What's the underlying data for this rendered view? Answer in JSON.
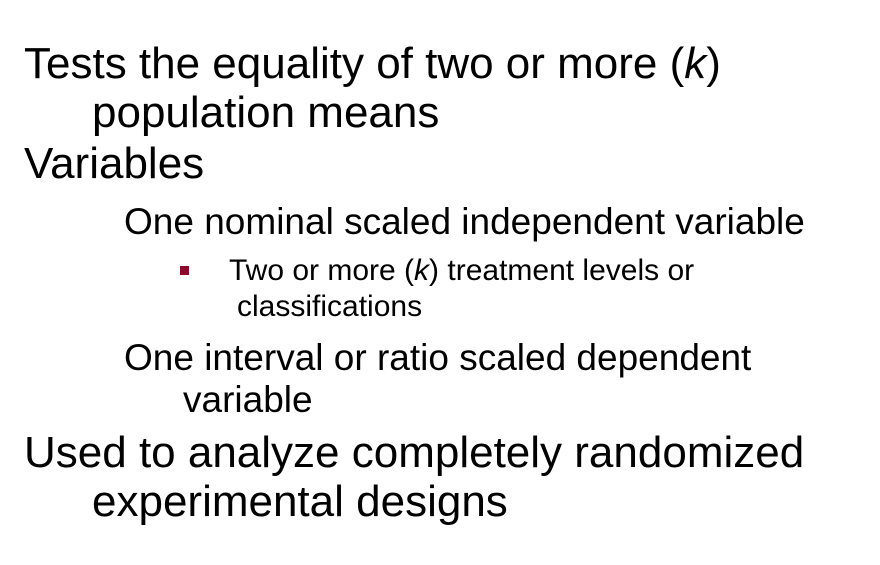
{
  "bullets": [
    {
      "level": 1,
      "lines": [
        {
          "before": "Tests the equality of two or more (",
          "italic": "k",
          "after": ")"
        },
        {
          "text": "population means"
        }
      ]
    },
    {
      "level": 1,
      "lines": [
        {
          "text": "Variables"
        }
      ]
    },
    {
      "level": 2,
      "lines": [
        {
          "text": "One nominal scaled independent variable"
        }
      ]
    },
    {
      "level": 3,
      "marker_color": "#8b0a2c",
      "lines": [
        {
          "before": "Two or more (",
          "italic": "k",
          "after": ") treatment levels or"
        },
        {
          "text": "classifications"
        }
      ]
    },
    {
      "level": 2,
      "lines": [
        {
          "text": "One interval or ratio scaled dependent"
        },
        {
          "text": "variable"
        }
      ]
    },
    {
      "level": 1,
      "lines": [
        {
          "text": "Used to analyze completely randomized"
        },
        {
          "text": "experimental designs"
        }
      ]
    }
  ]
}
